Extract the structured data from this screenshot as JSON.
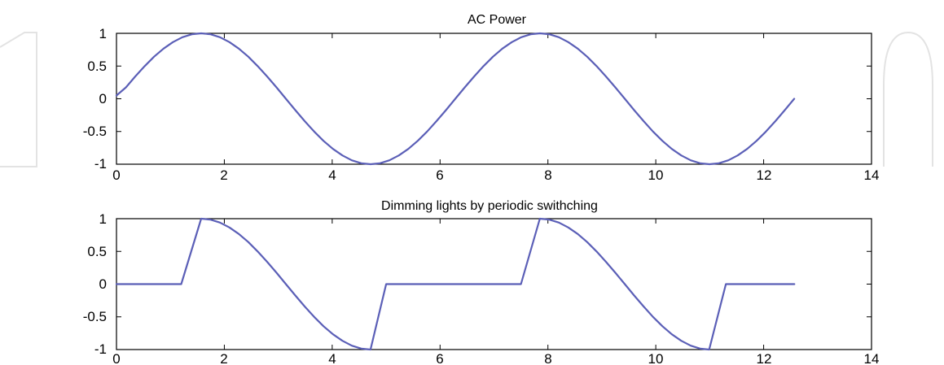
{
  "chart_data": [
    {
      "type": "line",
      "title": "AC Power",
      "xlabel": "",
      "ylabel": "",
      "xlim": [
        0,
        14
      ],
      "ylim": [
        -1,
        1
      ],
      "xticks": [
        "0",
        "2",
        "4",
        "6",
        "8",
        "10",
        "12",
        "14"
      ],
      "yticks": [
        "1",
        "0.5",
        "0",
        "-0.5",
        "-1"
      ],
      "grid": false,
      "color": "#5b5fb7",
      "series": [
        {
          "x": [
            0,
            0.1745,
            0.349,
            0.5236,
            0.6981,
            0.8727,
            1.0472,
            1.2217,
            1.3963,
            1.5708,
            1.7453,
            1.9199,
            2.0944,
            2.2689,
            2.4435,
            2.618,
            2.7925,
            2.9671,
            3.1416,
            3.3161,
            3.4907,
            3.6652,
            3.8397,
            4.0143,
            4.1888,
            4.3633,
            4.5379,
            4.7124,
            4.8869,
            5.0615,
            5.236,
            5.4105,
            5.5851,
            5.7596,
            5.9341,
            6.1087,
            6.2832,
            6.4577,
            6.6323,
            6.8068,
            6.9813,
            7.1558,
            7.3304,
            7.5049,
            7.6794,
            7.854,
            8.0285,
            8.203,
            8.3776,
            8.5521,
            8.7266,
            8.9012,
            9.0757,
            9.2502,
            9.4248,
            9.5993,
            9.7738,
            9.9484,
            10.1229,
            10.2974,
            10.472,
            10.6465,
            10.821,
            10.9956,
            11.1701,
            11.3446,
            11.5192,
            11.6937,
            11.8682,
            12.0428,
            12.2173,
            12.3918,
            12.5664
          ],
          "values": [
            0.05,
            0.174,
            0.342,
            0.5,
            0.643,
            0.766,
            0.866,
            0.94,
            0.985,
            1,
            0.985,
            0.94,
            0.866,
            0.766,
            0.643,
            0.5,
            0.342,
            0.174,
            0,
            -0.174,
            -0.342,
            -0.5,
            -0.643,
            -0.766,
            -0.866,
            -0.94,
            -0.985,
            -1,
            -0.985,
            -0.94,
            -0.866,
            -0.766,
            -0.643,
            -0.5,
            -0.342,
            -0.174,
            0,
            0.174,
            0.342,
            0.5,
            0.643,
            0.766,
            0.866,
            0.94,
            0.985,
            1,
            0.985,
            0.94,
            0.866,
            0.766,
            0.643,
            0.5,
            0.342,
            0.174,
            0,
            -0.174,
            -0.342,
            -0.5,
            -0.643,
            -0.766,
            -0.866,
            -0.94,
            -0.985,
            -1,
            -0.985,
            -0.94,
            -0.866,
            -0.766,
            -0.643,
            -0.5,
            -0.342,
            -0.174,
            0
          ]
        }
      ]
    },
    {
      "type": "line",
      "title": "Dimming lights by periodic swithching",
      "xlabel": "",
      "ylabel": "",
      "xlim": [
        0,
        14
      ],
      "ylim": [
        -1,
        1
      ],
      "xticks": [
        "0",
        "2",
        "4",
        "6",
        "8",
        "10",
        "12",
        "14"
      ],
      "yticks": [
        "1",
        "0.5",
        "0",
        "-0.5",
        "-1"
      ],
      "grid": false,
      "color": "#5b5fb7",
      "series": [
        {
          "x": [
            0,
            1.2,
            1.57,
            1.7453,
            1.9199,
            2.0944,
            2.2689,
            2.4435,
            2.618,
            2.7925,
            2.9671,
            3.1416,
            3.3161,
            3.4907,
            3.6652,
            3.8397,
            4.0143,
            4.1888,
            4.3633,
            4.5379,
            4.71,
            5.0,
            7.5,
            7.85,
            8.0285,
            8.203,
            8.3776,
            8.5521,
            8.7266,
            8.9012,
            9.0757,
            9.2502,
            9.4248,
            9.5993,
            9.7738,
            9.9484,
            10.1229,
            10.2974,
            10.472,
            10.6465,
            10.821,
            10.99,
            11.3,
            12.57
          ],
          "values": [
            0,
            0,
            1,
            0.985,
            0.94,
            0.866,
            0.766,
            0.643,
            0.5,
            0.342,
            0.174,
            0,
            -0.174,
            -0.342,
            -0.5,
            -0.643,
            -0.766,
            -0.866,
            -0.94,
            -0.985,
            -1,
            0,
            0,
            1,
            0.985,
            0.94,
            0.866,
            0.766,
            0.643,
            0.5,
            0.342,
            0.174,
            0,
            -0.174,
            -0.342,
            -0.5,
            -0.643,
            -0.766,
            -0.866,
            -0.94,
            -0.985,
            -1,
            0,
            0
          ]
        }
      ]
    }
  ]
}
